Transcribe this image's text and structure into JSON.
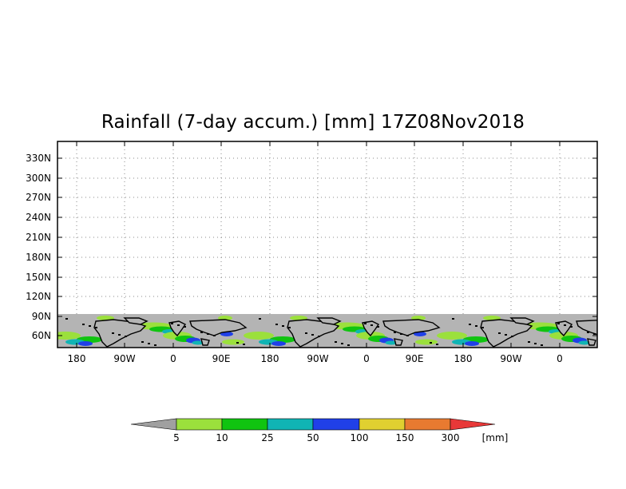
{
  "title": "Rainfall (7-day accum.) [mm] 17Z08Nov2018",
  "map": {
    "lat_labels": [
      "330N",
      "300N",
      "270N",
      "240N",
      "210N",
      "180N",
      "150N",
      "120N",
      "90N",
      "60N"
    ],
    "lon_labels": [
      "180",
      "90W",
      "0",
      "90E",
      "180",
      "90W",
      "0",
      "90E",
      "180",
      "90W",
      "0"
    ]
  },
  "colorbar": {
    "unit": "[mm]",
    "labels": [
      "5",
      "10",
      "25",
      "50",
      "100",
      "150",
      "300"
    ],
    "colors": [
      "#a0a0a0",
      "#9be03c",
      "#10c410",
      "#10b4b4",
      "#2040e8",
      "#e0d030",
      "#e87a30",
      "#e83838"
    ]
  }
}
